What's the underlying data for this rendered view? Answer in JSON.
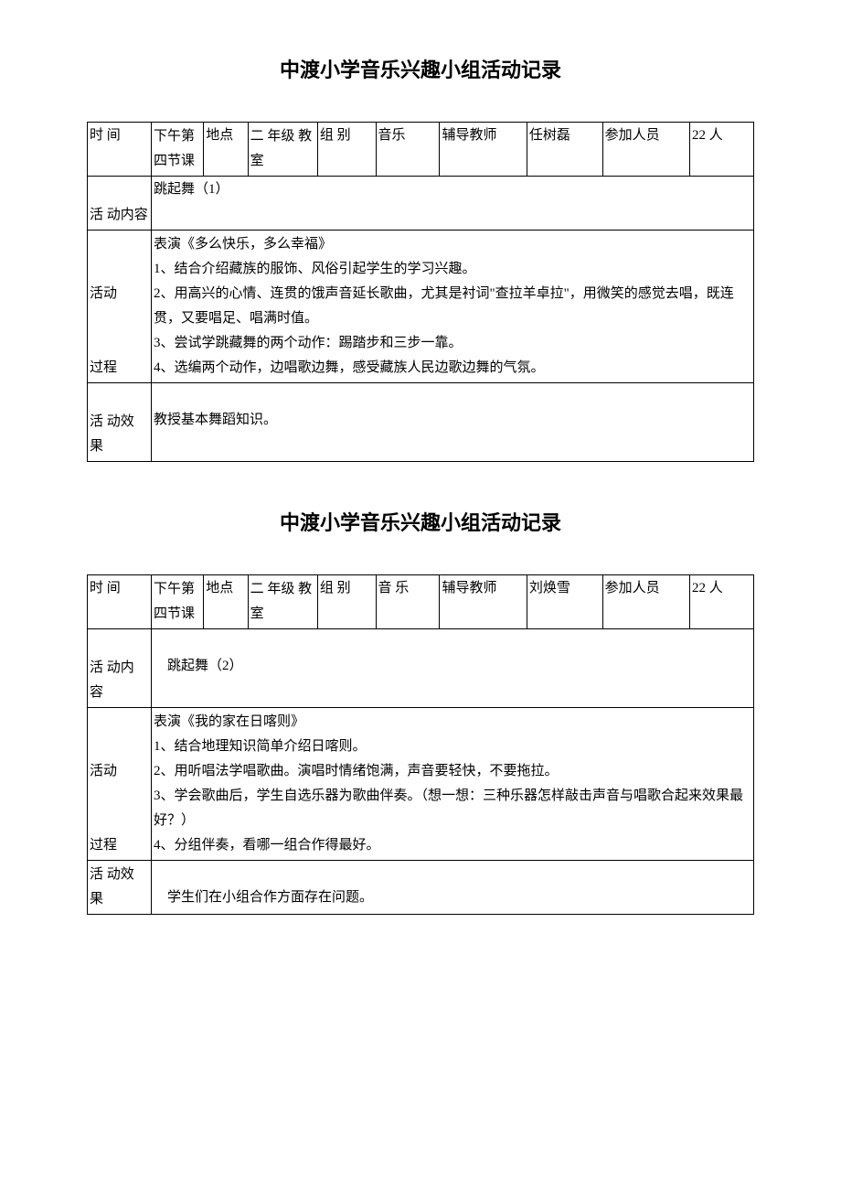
{
  "section1": {
    "title": "中渡小学音乐兴趣小组活动记录",
    "header": {
      "time_label": "时 间",
      "time_value": "下午第四节课",
      "place_label": "地点",
      "place_value": "二 年级 教室",
      "group_label": "组 别",
      "group_value": "音乐",
      "teacher_label": "辅导教师",
      "teacher_value": "任树磊",
      "participants_label": "参加人员",
      "participants_value": "22 人"
    },
    "content_label": "活 动内容",
    "content_value": "跳起舞（1）",
    "process_label1": "活动",
    "process_label2": "过程",
    "process_line1": "表演《多么快乐，多么幸福》",
    "process_line2": "1、结合介绍藏族的服饰、风俗引起学生的学习兴趣。",
    "process_line3": "2、用高兴的心情、连贯的饿声音延长歌曲，尤其是衬词\"查拉羊卓拉\"，用微笑的感觉去唱，既连贯，又要唱足、唱满时值。",
    "process_line4": "3、尝试学跳藏舞的两个动作：踢踏步和三步一靠。",
    "process_line5": "4、选编两个动作，边唱歌边舞，感受藏族人民边歌边舞的气氛。",
    "effect_label": "活 动效 果",
    "effect_value": "教授基本舞蹈知识。"
  },
  "section2": {
    "title": "中渡小学音乐兴趣小组活动记录",
    "header": {
      "time_label": "时 间",
      "time_value": "下午第四节课",
      "place_label": "地点",
      "place_value": "二 年级 教室",
      "group_label": "组 别",
      "group_value": "音 乐",
      "teacher_label": "辅导教师",
      "teacher_value": "刘焕雪",
      "participants_label": "参加人员",
      "participants_value": "22 人"
    },
    "content_label": "活 动内 容",
    "content_value": "　跳起舞（2）",
    "process_label1": "活动",
    "process_label2": "过程",
    "process_line1": "表演《我的家在日喀则》",
    "process_line2": "1、结合地理知识简单介绍日喀则。",
    "process_line3": "2、用听唱法学唱歌曲。演唱时情绪饱满，声音要轻快，不要拖拉。",
    "process_line4": "3、学会歌曲后，学生自选乐器为歌曲伴奏。（想一想：三种乐器怎样敲击声音与唱歌合起来效果最好？）",
    "process_line5": "4、分组伴奏，看哪一组合作得最好。",
    "effect_label": "活 动效 果",
    "effect_value": "　学生们在小组合作方面存在问题。"
  }
}
